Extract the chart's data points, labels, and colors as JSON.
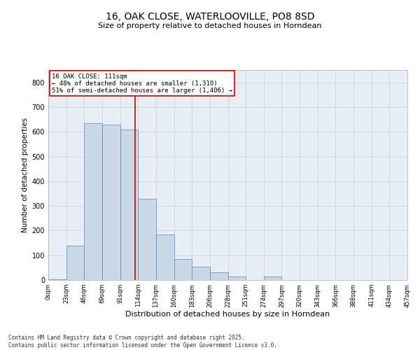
{
  "title_line1": "16, OAK CLOSE, WATERLOOVILLE, PO8 8SD",
  "title_line2": "Size of property relative to detached houses in Horndean",
  "xlabel": "Distribution of detached houses by size in Horndean",
  "ylabel": "Number of detached properties",
  "footnote": "Contains HM Land Registry data © Crown copyright and database right 2025.\nContains public sector information licensed under the Open Government Licence v3.0.",
  "bin_labels": [
    "0sqm",
    "23sqm",
    "46sqm",
    "69sqm",
    "91sqm",
    "114sqm",
    "137sqm",
    "160sqm",
    "183sqm",
    "206sqm",
    "228sqm",
    "251sqm",
    "274sqm",
    "297sqm",
    "320sqm",
    "343sqm",
    "366sqm",
    "388sqm",
    "411sqm",
    "434sqm",
    "457sqm"
  ],
  "bar_values": [
    2,
    140,
    635,
    630,
    610,
    330,
    185,
    85,
    55,
    30,
    15,
    0,
    15,
    0,
    0,
    0,
    0,
    0,
    0,
    0
  ],
  "bar_color": "#c9d9e8",
  "bar_edge_color": "#5a8ab0",
  "ylim": [
    0,
    850
  ],
  "yticks": [
    0,
    100,
    200,
    300,
    400,
    500,
    600,
    700,
    800
  ],
  "vline_x": 4.83,
  "annotation_title": "16 OAK CLOSE: 111sqm",
  "annotation_line2": "← 48% of detached houses are smaller (1,310)",
  "annotation_line3": "51% of semi-detached houses are larger (1,406) →",
  "annotation_box_color": "#ffffff",
  "annotation_border_color": "#cc0000",
  "vline_color": "#cc0000",
  "grid_color": "#c8d4e0",
  "background_color": "#e8eef5",
  "fig_background": "#ffffff",
  "title1_fontsize": 10,
  "title2_fontsize": 8,
  "ylabel_fontsize": 7.5,
  "xlabel_fontsize": 8,
  "ytick_fontsize": 7,
  "xtick_fontsize": 6,
  "annot_fontsize": 6.5,
  "footnote_fontsize": 5.5
}
